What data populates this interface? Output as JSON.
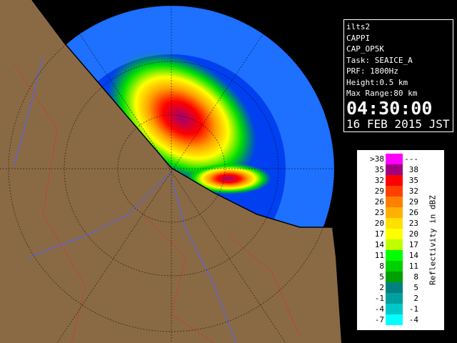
{
  "info": [
    "ilts2",
    "CAPPI",
    "CAP_OP5K",
    "Task: SEAICE_A",
    "PRF: 1800Hz",
    "Height:0.5 km",
    "Max Range:80 km"
  ],
  "time": "04:30:00",
  "date": "16 FEB 2015 JST",
  "legend": {
    "unit": "Reflectivity in dBZ",
    "rows": [
      {
        "low": ">38",
        "high": "---",
        "color": "#ff00ff"
      },
      {
        "low": "35",
        "high": "38",
        "color": "#a00080"
      },
      {
        "low": "32",
        "high": "35",
        "color": "#ff0000"
      },
      {
        "low": "29",
        "high": "32",
        "color": "#ff4000"
      },
      {
        "low": "26",
        "high": "29",
        "color": "#ff8000"
      },
      {
        "low": "23",
        "high": "26",
        "color": "#ffb000"
      },
      {
        "low": "20",
        "high": "23",
        "color": "#ffe000"
      },
      {
        "low": "17",
        "high": "20",
        "color": "#ffff00"
      },
      {
        "low": "14",
        "high": "17",
        "color": "#c0ff00"
      },
      {
        "low": "11",
        "high": "14",
        "color": "#00ff00"
      },
      {
        "low": "8",
        "high": "11",
        "color": "#00d000"
      },
      {
        "low": "5",
        "high": "8",
        "color": "#00a000"
      },
      {
        "low": "2",
        "high": "5",
        "color": "#008080"
      },
      {
        "low": "-1",
        "high": "2",
        "color": "#00a0a0"
      },
      {
        "low": "-4",
        "high": "-1",
        "color": "#00c8c8"
      },
      {
        "low": "-7",
        "high": "-4",
        "color": "#00ffff"
      }
    ]
  }
}
